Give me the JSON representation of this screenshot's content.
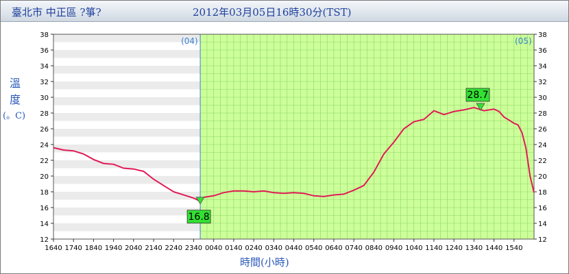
{
  "header": {
    "station": "臺北市 中正區 ?箏?",
    "datetime": "2012年03月05日16時30分(TST)"
  },
  "axis_labels": {
    "y_chars": [
      "溫",
      "度"
    ],
    "y_unit": "(。C)",
    "x_label": "時間(小時)"
  },
  "colors": {
    "grid_line": "#8fd36a",
    "today_fill": "#ccff99",
    "series": "#e01a56",
    "day_marker": "#3a7fd0",
    "annotation_fill": "#33e033"
  },
  "chart_data": {
    "type": "line",
    "ylim": [
      12,
      38
    ],
    "y_ticks": [
      "12",
      "14",
      "16",
      "18",
      "20",
      "22",
      "24",
      "26",
      "28",
      "30",
      "32",
      "34",
      "36",
      "38"
    ],
    "x_ticks": [
      "1640",
      "1740",
      "1840",
      "1940",
      "2040",
      "2140",
      "2240",
      "2340",
      "0040",
      "0140",
      "0240",
      "0340",
      "0440",
      "0540",
      "0640",
      "0740",
      "0840",
      "0940",
      "1040",
      "1140",
      "1240",
      "1340",
      "1440",
      "1540"
    ],
    "day_labels": [
      {
        "label": "(04)",
        "at_hour": 0
      },
      {
        "label": "(05)",
        "at_hour": 24
      }
    ],
    "today_start_hour": 7.33,
    "grid": true,
    "series": [
      {
        "x": [
          0,
          0.5,
          1,
          1.5,
          2,
          2.5,
          3,
          3.5,
          4,
          4.5,
          5,
          5.5,
          6,
          6.5,
          7,
          7.33,
          7.5,
          8,
          8.5,
          9,
          9.5,
          10,
          10.5,
          11,
          11.5,
          12,
          12.5,
          13,
          13.5,
          14,
          14.5,
          15,
          15.5,
          16,
          16.5,
          17,
          17.5,
          18,
          18.5,
          19,
          19.5,
          20,
          20.5,
          21,
          21.5,
          22,
          22.25,
          22.5,
          22.75,
          23,
          23.2,
          23.4,
          23.6,
          23.8,
          24.0
        ],
        "y": [
          23.6,
          23.3,
          23.2,
          22.8,
          22.1,
          21.6,
          21.5,
          21.0,
          20.9,
          20.6,
          19.6,
          18.8,
          18.0,
          17.6,
          17.2,
          16.8,
          17.3,
          17.5,
          17.9,
          18.1,
          18.1,
          18.0,
          18.1,
          17.9,
          17.8,
          17.9,
          17.8,
          17.5,
          17.4,
          17.6,
          17.7,
          18.2,
          18.8,
          20.5,
          22.8,
          24.3,
          26.0,
          26.9,
          27.2,
          28.3,
          27.8,
          28.2,
          28.4,
          28.7,
          28.3,
          28.5,
          28.2,
          27.5,
          27.1,
          26.7,
          26.5,
          25.5,
          23.5,
          20.0,
          17.9
        ]
      }
    ],
    "annotations": [
      {
        "label": "16.8",
        "x": 7.0,
        "y": 16.8,
        "marker": "min"
      },
      {
        "label": "28.7",
        "x": 21.0,
        "y": 28.7,
        "marker": "max"
      }
    ]
  }
}
